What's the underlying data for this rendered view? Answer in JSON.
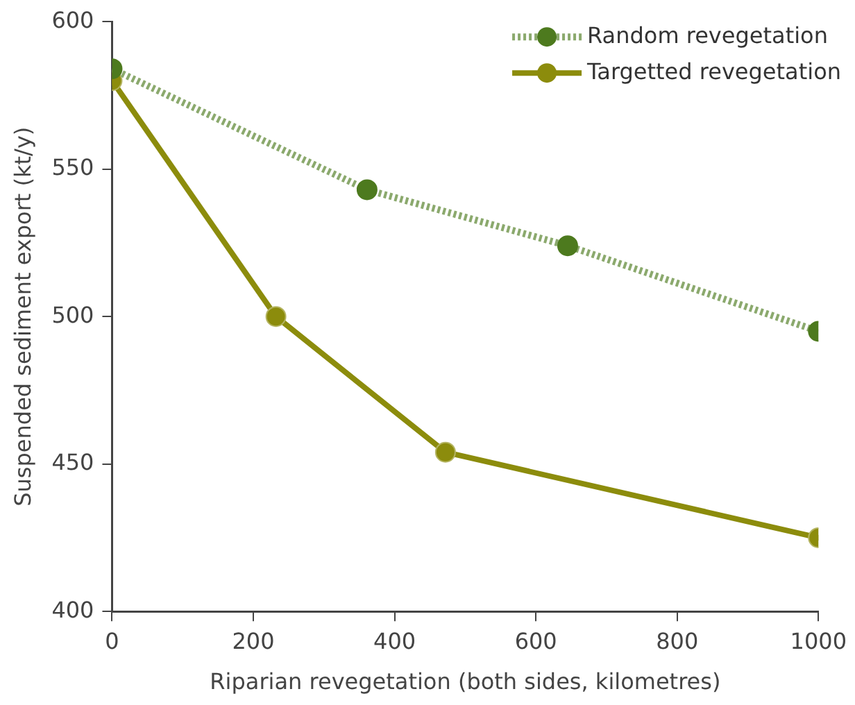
{
  "chart_data": {
    "type": "line",
    "xlabel": "Riparian revegetation (both sides, kilometres)",
    "ylabel": "Suspended sediment export (kt/y)",
    "xlim": [
      0,
      1000
    ],
    "xticks": [
      0,
      200,
      400,
      600,
      800,
      1000
    ],
    "ylim": [
      400,
      600
    ],
    "yticks": [
      400,
      450,
      500,
      550,
      600
    ],
    "grid": false,
    "legend": "top right",
    "marker": "circle",
    "series": [
      {
        "name": "Random revegetation",
        "color": "#4d7a1e",
        "line_style": "dotted",
        "x": [
          0,
          361,
          645,
          1000
        ],
        "values": [
          584,
          543,
          524,
          495
        ]
      },
      {
        "name": "Targetted revegetation",
        "color": "#8c8c0c",
        "line_style": "solid",
        "x": [
          0,
          232,
          472,
          1000
        ],
        "values": [
          580,
          500,
          454,
          425
        ]
      }
    ]
  }
}
